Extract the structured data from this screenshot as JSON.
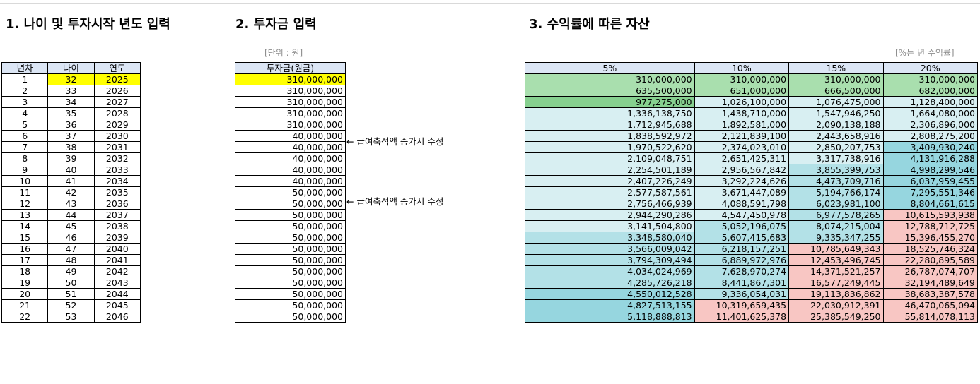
{
  "section1": {
    "title": "1. 나이 및 투자시작 년도 입력"
  },
  "section2": {
    "title": "2. 투자금 입력",
    "unit_note": "[단위 : 원]"
  },
  "section3": {
    "title": "3. 수익률에 따른 자산",
    "rate_note": "[%는 년 수익률]"
  },
  "age_table": {
    "headers": [
      "년차",
      "나이",
      "연도"
    ],
    "rows": [
      [
        "1",
        "32",
        "2025"
      ],
      [
        "2",
        "33",
        "2026"
      ],
      [
        "3",
        "34",
        "2027"
      ],
      [
        "4",
        "35",
        "2028"
      ],
      [
        "5",
        "36",
        "2029"
      ],
      [
        "6",
        "37",
        "2030"
      ],
      [
        "7",
        "38",
        "2031"
      ],
      [
        "8",
        "39",
        "2032"
      ],
      [
        "9",
        "40",
        "2033"
      ],
      [
        "10",
        "41",
        "2034"
      ],
      [
        "11",
        "42",
        "2035"
      ],
      [
        "12",
        "43",
        "2036"
      ],
      [
        "13",
        "44",
        "2037"
      ],
      [
        "14",
        "45",
        "2038"
      ],
      [
        "15",
        "46",
        "2039"
      ],
      [
        "16",
        "47",
        "2040"
      ],
      [
        "17",
        "48",
        "2041"
      ],
      [
        "18",
        "49",
        "2042"
      ],
      [
        "19",
        "50",
        "2043"
      ],
      [
        "20",
        "51",
        "2044"
      ],
      [
        "21",
        "52",
        "2045"
      ],
      [
        "22",
        "53",
        "2046"
      ]
    ]
  },
  "invest_table": {
    "header": "투자금(원금)",
    "rows": [
      "310,000,000",
      "310,000,000",
      "310,000,000",
      "310,000,000",
      "310,000,000",
      "40,000,000",
      "40,000,000",
      "40,000,000",
      "40,000,000",
      "40,000,000",
      "50,000,000",
      "50,000,000",
      "50,000,000",
      "50,000,000",
      "50,000,000",
      "50,000,000",
      "50,000,000",
      "50,000,000",
      "50,000,000",
      "50,000,000",
      "50,000,000",
      "50,000,000"
    ]
  },
  "memos": [
    {
      "row": 6,
      "text": "← 급여축적액 증가시 수정"
    },
    {
      "row": 11,
      "text": "← 급여축적액 증가시 수정"
    }
  ],
  "asset_table": {
    "headers": [
      "5%",
      "10%",
      "15%",
      "20%"
    ],
    "rows": [
      [
        "310,000,000",
        "310,000,000",
        "310,000,000",
        "310,000,000"
      ],
      [
        "635,500,000",
        "651,000,000",
        "666,500,000",
        "682,000,000"
      ],
      [
        "977,275,000",
        "1,026,100,000",
        "1,076,475,000",
        "1,128,400,000"
      ],
      [
        "1,336,138,750",
        "1,438,710,000",
        "1,547,946,250",
        "1,664,080,000"
      ],
      [
        "1,712,945,688",
        "1,892,581,000",
        "2,090,138,188",
        "2,306,896,000"
      ],
      [
        "1,838,592,972",
        "2,121,839,100",
        "2,443,658,916",
        "2,808,275,200"
      ],
      [
        "1,970,522,620",
        "2,374,023,010",
        "2,850,207,753",
        "3,409,930,240"
      ],
      [
        "2,109,048,751",
        "2,651,425,311",
        "3,317,738,916",
        "4,131,916,288"
      ],
      [
        "2,254,501,189",
        "2,956,567,842",
        "3,855,399,753",
        "4,998,299,546"
      ],
      [
        "2,407,226,249",
        "3,292,224,626",
        "4,473,709,716",
        "6,037,959,455"
      ],
      [
        "2,577,587,561",
        "3,671,447,089",
        "5,194,766,174",
        "7,295,551,346"
      ],
      [
        "2,756,466,939",
        "4,088,591,798",
        "6,023,981,100",
        "8,804,661,615"
      ],
      [
        "2,944,290,286",
        "4,547,450,978",
        "6,977,578,265",
        "10,615,593,938"
      ],
      [
        "3,141,504,800",
        "5,052,196,075",
        "8,074,215,004",
        "12,788,712,725"
      ],
      [
        "3,348,580,040",
        "5,607,415,683",
        "9,335,347,255",
        "15,396,455,270"
      ],
      [
        "3,566,009,042",
        "6,218,157,251",
        "10,785,649,343",
        "18,525,746,324"
      ],
      [
        "3,794,309,494",
        "6,889,972,976",
        "12,453,496,745",
        "22,280,895,589"
      ],
      [
        "4,034,024,969",
        "7,628,970,274",
        "14,371,521,257",
        "26,787,074,707"
      ],
      [
        "4,285,726,218",
        "8,441,867,301",
        "16,577,249,445",
        "32,194,489,649"
      ],
      [
        "4,550,012,528",
        "9,336,054,031",
        "19,113,836,862",
        "38,683,387,578"
      ],
      [
        "4,827,513,155",
        "10,319,659,435",
        "22,030,912,391",
        "46,470,065,094"
      ],
      [
        "5,118,888,813",
        "11,401,625,378",
        "25,385,549,250",
        "55,814,078,113"
      ]
    ]
  },
  "colors": {
    "green": "#a9dfae",
    "green_dark": "#86d08f",
    "light": "#d8eff2",
    "teal1": "#b3e1e7",
    "teal2": "#96d6df",
    "pink": "#f8c6c3",
    "yellow": "#ffff00",
    "header": "#dce6f5"
  }
}
